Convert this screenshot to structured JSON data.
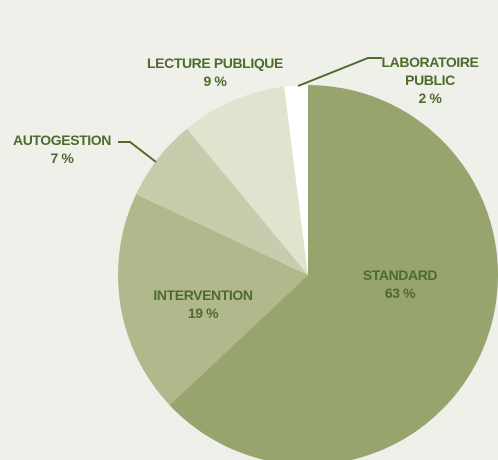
{
  "chart_data": {
    "type": "pie",
    "categories": [
      "STANDARD",
      "INTERVENTION",
      "AUTOGESTION",
      "LECTURE PUBLIQUE",
      "LABORATOIRE PUBLIC"
    ],
    "values": [
      63,
      19,
      7,
      9,
      2
    ],
    "value_labels": [
      "63 %",
      "19 %",
      "7 %",
      "9 %",
      "2 %"
    ],
    "colors": [
      "#98a46e",
      "#b0b88c",
      "#c8cbac",
      "#e2e3cf",
      "#ffffff"
    ]
  }
}
